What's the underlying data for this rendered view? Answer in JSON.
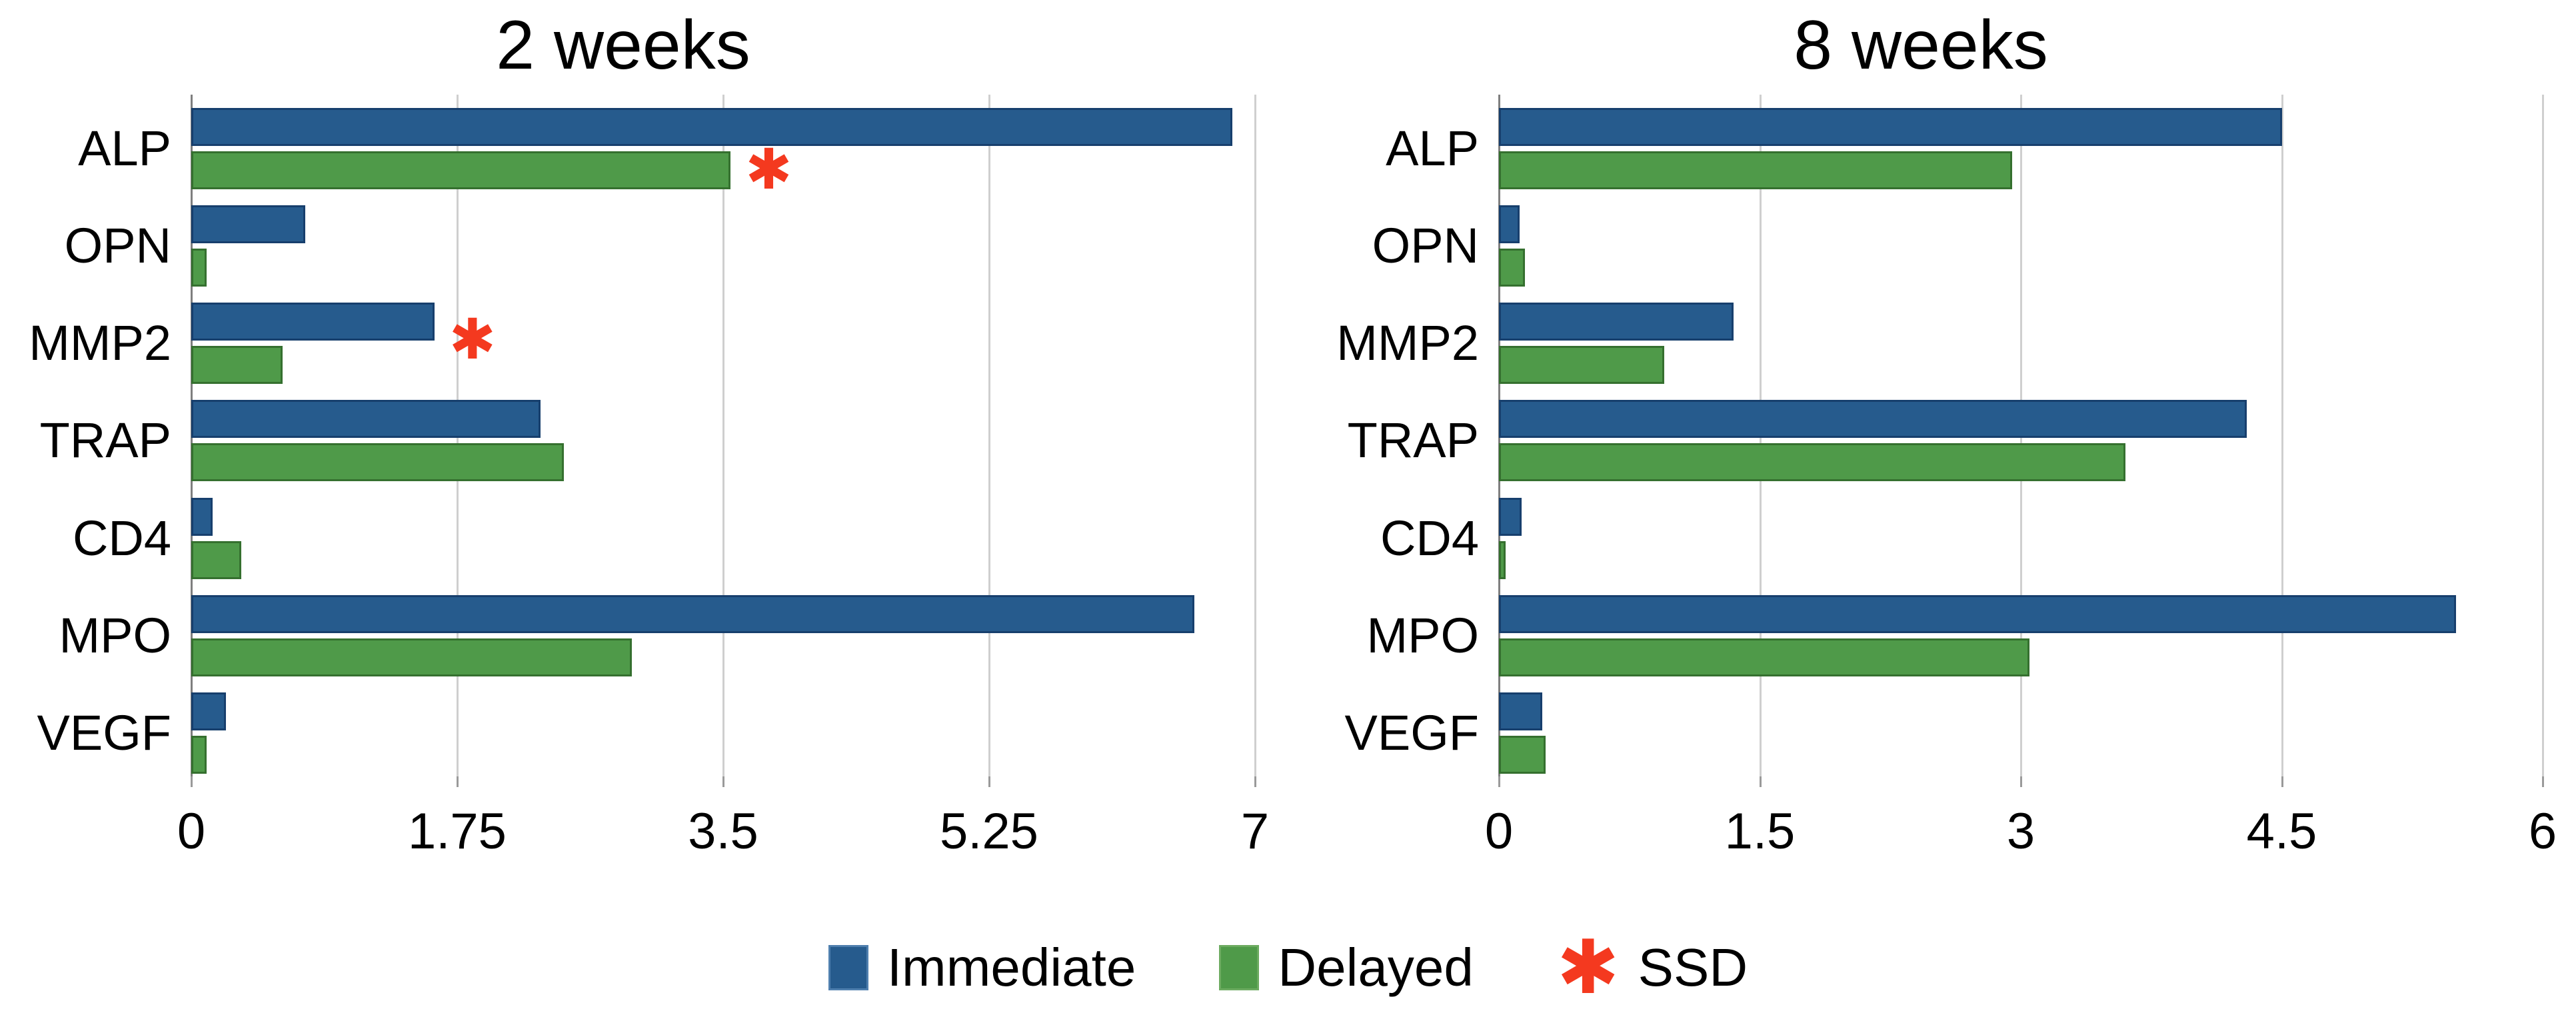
{
  "figure_type": "grouped-horizontal-bar-chart-pair",
  "legend": {
    "items": [
      {
        "label": "Immediate",
        "type": "swatch",
        "color": "#265b8d"
      },
      {
        "label": "Delayed",
        "type": "swatch",
        "color": "#4f9a49"
      },
      {
        "label": "SSD",
        "type": "asterisk",
        "color": "#f4391f",
        "glyph": "✱"
      }
    ],
    "position": "bottom-center"
  },
  "colors": {
    "immediate": "#265b8d",
    "immediate_border": "#173f6d",
    "delayed": "#4f9a49",
    "delayed_border": "#35702f",
    "ssd": "#f4391f",
    "gridline": "#cfcfcf",
    "axis": "#7f7f7f"
  },
  "chart_data": [
    {
      "type": "bar",
      "orientation": "horizontal",
      "title": "2 weeks",
      "categories": [
        "ALP",
        "OPN",
        "MMP2",
        "TRAP",
        "CD4",
        "MPO",
        "VEGF"
      ],
      "series": [
        {
          "name": "Immediate",
          "color": "#265b8d",
          "values": [
            6.85,
            0.75,
            1.6,
            2.3,
            0.14,
            6.6,
            0.23
          ]
        },
        {
          "name": "Delayed",
          "color": "#4f9a49",
          "values": [
            3.55,
            0.1,
            0.6,
            2.45,
            0.33,
            2.9,
            0.1
          ]
        }
      ],
      "xlim": [
        0,
        7
      ],
      "xticks": [
        "0",
        "1.75",
        "3.5",
        "5.25",
        "7"
      ],
      "xtick_values": [
        0,
        1.75,
        3.5,
        5.25,
        7
      ],
      "xlabel": "",
      "ylabel": "",
      "grid": true,
      "ssd_markers": [
        {
          "category": "ALP",
          "series": "Delayed",
          "align": "middle"
        },
        {
          "category": "MMP2",
          "series": "Immediate",
          "align": "bottom"
        }
      ]
    },
    {
      "type": "bar",
      "orientation": "horizontal",
      "title": "8 weeks",
      "categories": [
        "ALP",
        "OPN",
        "MMP2",
        "TRAP",
        "CD4",
        "MPO",
        "VEGF"
      ],
      "series": [
        {
          "name": "Immediate",
          "color": "#265b8d",
          "values": [
            4.5,
            0.12,
            1.35,
            4.3,
            0.13,
            5.5,
            0.25
          ]
        },
        {
          "name": "Delayed",
          "color": "#4f9a49",
          "values": [
            2.95,
            0.15,
            0.95,
            3.6,
            0.04,
            3.05,
            0.27
          ]
        }
      ],
      "xlim": [
        0,
        6
      ],
      "xticks": [
        "0",
        "1.5",
        "3",
        "4.5",
        "6"
      ],
      "xtick_values": [
        0,
        1.5,
        3,
        4.5,
        6
      ],
      "xlabel": "",
      "ylabel": "",
      "grid": true,
      "ssd_markers": []
    }
  ]
}
